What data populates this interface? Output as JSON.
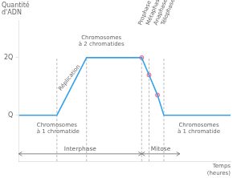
{
  "chart_data": {
    "type": "line",
    "title": "Quantité\nd'ADN",
    "x_label": "Temps\n(heures)",
    "x": [
      0.0,
      1.8,
      3.2,
      5.8,
      6.15,
      6.55,
      6.85,
      7.1,
      10.0
    ],
    "values": [
      1.0,
      1.0,
      2.0,
      2.0,
      1.7,
      1.35,
      1.0,
      1.0,
      1.0
    ],
    "points": [
      [
        5.8,
        2.0
      ],
      [
        6.15,
        1.7
      ],
      [
        6.55,
        1.35
      ]
    ],
    "vlines": [
      {
        "x": 1.8,
        "top": 2.0
      },
      {
        "x": 3.2,
        "top": 2.0
      },
      {
        "x": 5.8,
        "top": 2.0
      },
      {
        "x": 6.15,
        "top": 2.0
      },
      {
        "x": 6.85,
        "top": 2.0
      }
    ],
    "xlim": [
      0,
      10
    ],
    "ylim": [
      0.2,
      2.65
    ],
    "yticks": [
      {
        "value": 1.0,
        "label": "Q"
      },
      {
        "value": 2.0,
        "label": "2Q"
      }
    ],
    "tick_labels": "y",
    "grid": false,
    "annotations": [
      {
        "text": "Réplication",
        "x": 2.5,
        "y": 1.62
      },
      {
        "text": "Chromosomes\nà 2 chromatides",
        "x": 3.9,
        "y": 2.18
      },
      {
        "text": "Chromosomes\nà 1 chromatide",
        "x": 0.85,
        "y": 0.88
      },
      {
        "text": "Chromosomes\nà 1 chromatide",
        "x": 8.5,
        "y": 0.88
      }
    ],
    "phase_labels": [
      {
        "text": "Prophase",
        "x": 5.85,
        "y": 2.55
      },
      {
        "text": "Métaphase",
        "x": 6.22,
        "y": 2.55
      },
      {
        "text": "Anaphase",
        "x": 6.58,
        "y": 2.55
      },
      {
        "text": "Télophase",
        "x": 6.93,
        "y": 2.55
      }
    ],
    "spans": [
      {
        "text": "Interphase",
        "x1": 0.0,
        "x2": 5.8,
        "y": 0.33
      },
      {
        "text": "Mitose",
        "x1": 5.8,
        "x2": 7.6,
        "y": 0.33
      }
    ]
  }
}
